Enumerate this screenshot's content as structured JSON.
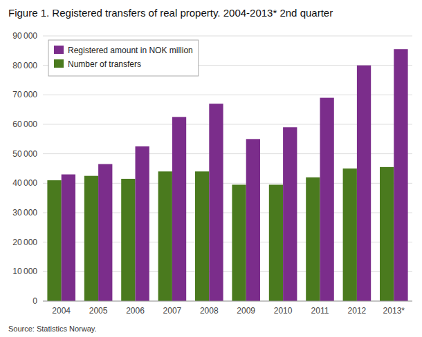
{
  "chart_data": {
    "type": "bar",
    "title": "Figure 1. Registered transfers of real property. 2004-2013* 2nd quarter",
    "source": "Source: Statistics Norway.",
    "categories": [
      "2004",
      "2005",
      "2006",
      "2007",
      "2008",
      "2009",
      "2010",
      "2011",
      "2012",
      "2013*"
    ],
    "series": [
      {
        "name": "Number of transfers",
        "color": "#4A7A1E",
        "values": [
          41000,
          42500,
          41500,
          44000,
          44000,
          39500,
          39500,
          42000,
          45000,
          45500
        ]
      },
      {
        "name": "Registered amount in NOK million",
        "color": "#7B2D8B",
        "values": [
          43000,
          46500,
          52500,
          62500,
          67000,
          55000,
          59000,
          69000,
          80000,
          85500
        ]
      }
    ],
    "ylim": [
      0,
      90000
    ],
    "yticks": [
      0,
      {
        "value": 10000,
        "label": "10 000"
      },
      {
        "value": 20000,
        "label": "20 000"
      },
      {
        "value": 30000,
        "label": "30 000"
      },
      {
        "value": 40000,
        "label": "40 000"
      },
      {
        "value": 50000,
        "label": "50 000"
      },
      {
        "value": 60000,
        "label": "60 000"
      },
      {
        "value": 70000,
        "label": "70 000"
      },
      {
        "value": 80000,
        "label": "80 000"
      },
      {
        "value": 90000,
        "label": "90 000"
      }
    ],
    "grid": true,
    "legend": "upper left"
  }
}
